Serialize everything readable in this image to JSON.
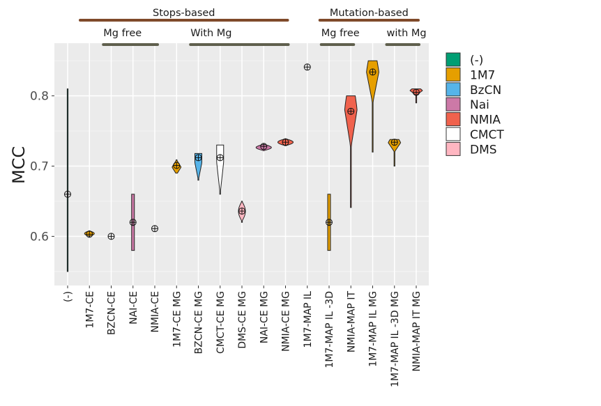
{
  "chart_data": {
    "type": "violin",
    "ylabel": "MCC",
    "xlabel": "",
    "ylim": [
      0.53,
      0.875
    ],
    "y_ticks": [
      0.6,
      0.7,
      0.8
    ],
    "y_tick_labels": [
      "0.6",
      "0.7",
      "0.8"
    ],
    "grid": true,
    "legend_position": "right",
    "legend": [
      {
        "name": "(-)",
        "color": "#009E73"
      },
      {
        "name": "1M7",
        "color": "#E69F00"
      },
      {
        "name": "BzCN",
        "color": "#56B4E9"
      },
      {
        "name": "Nai",
        "color": "#CC79A7"
      },
      {
        "name": "NMIA",
        "color": "#F0624D"
      },
      {
        "name": "CMCT",
        "color": "#FFFFFF"
      },
      {
        "name": "DMS",
        "color": "#FFB6C1"
      }
    ],
    "categories": [
      "(-)",
      "1M7-CE",
      "BZCN-CE",
      "NAI-CE",
      "NMIA-CE",
      "1M7-CE MG",
      "BZCN-CE MG",
      "CMCT-CE MG",
      "DMS-CE MG",
      "NAI-CE MG",
      "NMIA-CE MG",
      "1M7-MAP IL",
      "1M7-MAP IL -3D",
      "NMIA-MAP IT",
      "1M7-MAP IL MG",
      "1M7-MAP IL -3D MG",
      "NMIA-MAP IT MG"
    ],
    "violins": [
      {
        "category": "(-)",
        "reagent": "(-)",
        "min": 0.55,
        "max": 0.81,
        "mean": 0.66,
        "shape": "line"
      },
      {
        "category": "1M7-CE",
        "reagent": "1M7",
        "min": 0.6,
        "max": 0.608,
        "mean": 0.603,
        "shape": "flat"
      },
      {
        "category": "BZCN-CE",
        "reagent": "BzCN",
        "min": 0.6,
        "max": 0.6,
        "mean": 0.6,
        "shape": "point"
      },
      {
        "category": "NAI-CE",
        "reagent": "Nai",
        "min": 0.58,
        "max": 0.66,
        "mean": 0.62,
        "shape": "bar"
      },
      {
        "category": "NMIA-CE",
        "reagent": "NMIA",
        "min": 0.611,
        "max": 0.611,
        "mean": 0.611,
        "shape": "point"
      },
      {
        "category": "1M7-CE MG",
        "reagent": "1M7",
        "min": 0.69,
        "max": 0.709,
        "mean": 0.701,
        "shape": "diamond"
      },
      {
        "category": "BZCN-CE MG",
        "reagent": "BzCN",
        "min": 0.68,
        "max": 0.718,
        "mean": 0.712,
        "shape": "tail-down"
      },
      {
        "category": "CMCT-CE MG",
        "reagent": "CMCT",
        "min": 0.66,
        "max": 0.73,
        "mean": 0.712,
        "shape": "tail-down"
      },
      {
        "category": "DMS-CE MG",
        "reagent": "DMS",
        "min": 0.62,
        "max": 0.65,
        "mean": 0.636,
        "shape": "bulb"
      },
      {
        "category": "NAI-CE MG",
        "reagent": "Nai",
        "min": 0.722,
        "max": 0.731,
        "mean": 0.728,
        "shape": "wide"
      },
      {
        "category": "NMIA-CE MG",
        "reagent": "NMIA",
        "min": 0.729,
        "max": 0.739,
        "mean": 0.734,
        "shape": "wide"
      },
      {
        "category": "1M7-MAP IL",
        "reagent": "1M7",
        "min": 0.841,
        "max": 0.841,
        "mean": 0.841,
        "shape": "point"
      },
      {
        "category": "1M7-MAP IL -3D",
        "reagent": "1M7",
        "min": 0.58,
        "max": 0.66,
        "mean": 0.62,
        "shape": "bar"
      },
      {
        "category": "NMIA-MAP IT",
        "reagent": "NMIA",
        "min": 0.641,
        "max": 0.8,
        "mean": 0.778,
        "shape": "tail-down-top"
      },
      {
        "category": "1M7-MAP IL MG",
        "reagent": "1M7",
        "min": 0.72,
        "max": 0.85,
        "mean": 0.834,
        "shape": "tail-down-top"
      },
      {
        "category": "1M7-MAP IL -3D MG",
        "reagent": "1M7",
        "min": 0.7,
        "max": 0.738,
        "mean": 0.734,
        "shape": "tail-down-top"
      },
      {
        "category": "NMIA-MAP IT MG",
        "reagent": "NMIA",
        "min": 0.79,
        "max": 0.81,
        "mean": 0.805,
        "shape": "tail-down-top"
      }
    ],
    "group_annotations": [
      {
        "label": "Stops-based",
        "level": "top",
        "from": "(-)",
        "to": "NMIA-CE MG"
      },
      {
        "label": "Mutation-based",
        "level": "top",
        "from": "1M7-MAP IL",
        "to": "NMIA-MAP IT MG"
      },
      {
        "label": "Mg free",
        "level": "sub",
        "from": "1M7-CE",
        "to": "NMIA-CE"
      },
      {
        "label": "With Mg",
        "level": "sub",
        "from": "1M7-CE MG",
        "to": "NMIA-CE MG"
      },
      {
        "label": "Mg free",
        "level": "sub",
        "from": "1M7-MAP IL",
        "to": "NMIA-MAP IT"
      },
      {
        "label": "with Mg",
        "level": "sub",
        "from": "1M7-MAP IL MG",
        "to": "NMIA-MAP IT MG"
      }
    ],
    "annotation_colors": {
      "top": "#7f4a2a",
      "sub": "#5f5f4d"
    }
  }
}
